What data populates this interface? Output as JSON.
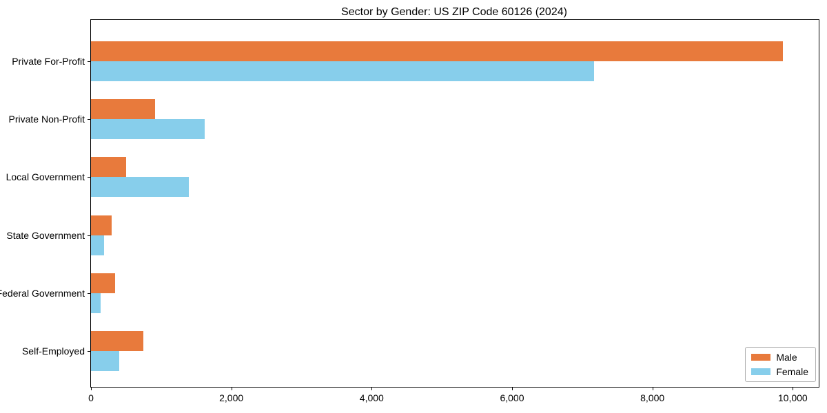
{
  "chart_data": {
    "type": "bar",
    "orientation": "horizontal",
    "title": "Sector by Gender: US ZIP Code 60126 (2024)",
    "categories": [
      "Private For-Profit",
      "Private Non-Profit",
      "Local Government",
      "State Government",
      "Federal Government",
      "Self-Employed"
    ],
    "series": [
      {
        "name": "Male",
        "color": "#e87a3c",
        "values": [
          9860,
          915,
          500,
          295,
          345,
          745
        ]
      },
      {
        "name": "Female",
        "color": "#87ceeb",
        "values": [
          7170,
          1620,
          1395,
          190,
          140,
          400
        ]
      }
    ],
    "xlabel": "",
    "ylabel": "",
    "xlim": [
      0,
      10370
    ],
    "xtick_values": [
      0,
      2000,
      4000,
      6000,
      8000,
      10000
    ],
    "xtick_labels": [
      "0",
      "2,000",
      "4,000",
      "6,000",
      "8,000",
      "10,000"
    ],
    "grid": false,
    "legend_position": "lower right",
    "frame_color": "#000000",
    "background_color": "#ffffff"
  }
}
